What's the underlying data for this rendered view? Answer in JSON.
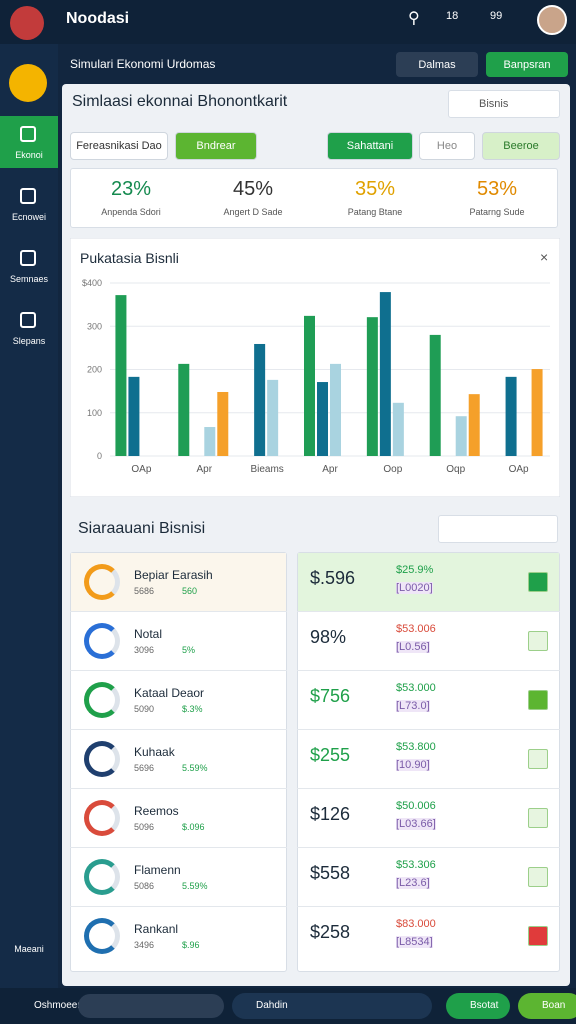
{
  "header": {
    "brand": "Noodasi",
    "badges": [
      "18",
      "99"
    ]
  },
  "toolbar": {
    "breadcrumb": "Simulari Ekonomi Urdomas",
    "buttons": [
      "Dalmas",
      "Banpsran"
    ]
  },
  "sidebar": {
    "items": [
      "Ekonoi",
      "Ecnowei",
      "Semnaes",
      "Slepans"
    ],
    "bottom": "Maeani"
  },
  "panel": {
    "title": "Simlaasi ekonnai Bhonontkarit",
    "dropdown": "Bisnis",
    "filters": [
      "Fereasnikasi Dao",
      "Bndrear",
      "Sahattani",
      "Heo",
      "Beeroe"
    ],
    "stats": [
      {
        "value": "23%",
        "label": "Anpenda Sdori"
      },
      {
        "value": "45%",
        "label": "Angert D Sade"
      },
      {
        "value": "35%",
        "label": "Patang Btane"
      },
      {
        "value": "53%",
        "label": "Patarng Sude"
      }
    ]
  },
  "chart_data": {
    "type": "bar",
    "title": "Pukatasia Bisnli",
    "categories": [
      "OAp",
      "Apr",
      "Bieams",
      "Apr",
      "Oop",
      "Oqp",
      "OAp"
    ],
    "series": [
      {
        "color": "#1f9d55",
        "values": [
          372,
          213,
          null,
          324,
          321,
          280,
          null
        ]
      },
      {
        "color": "#0f6f8f",
        "values": [
          183,
          null,
          259,
          171,
          379,
          null,
          183
        ]
      },
      {
        "color": "#a9d3e0",
        "values": [
          null,
          67,
          176,
          213,
          123,
          92,
          null
        ]
      },
      {
        "color": "#f5a02a",
        "values": [
          null,
          148,
          null,
          null,
          null,
          143,
          201
        ]
      }
    ],
    "ylim": [
      0,
      400
    ],
    "yticks": [
      {
        "value": 400,
        "label": "$400"
      },
      300,
      200,
      100,
      0
    ],
    "grid": true
  },
  "list": {
    "title": "Siaraauani Bisnisi",
    "rows": [
      {
        "name": "Bepiar Earasih",
        "a": "5686",
        "b": "560",
        "value": "$.596",
        "top": "$25.9%",
        "bottom": "[L0020]"
      },
      {
        "name": "Notal",
        "a": "3096",
        "b": "5%",
        "value": "98%",
        "top": "$53.006",
        "bottom": "[L0.56]"
      },
      {
        "name": "Kataal Deaor",
        "a": "5090",
        "b": "$.3%",
        "value": "$756",
        "top": "$53.000",
        "bottom": "[L73.0]"
      },
      {
        "name": "Kuhaak",
        "a": "5696",
        "b": "5.59%",
        "value": "$255",
        "top": "$53.800",
        "bottom": "[10.90]"
      },
      {
        "name": "Reemos",
        "a": "5096",
        "b": "$.096",
        "value": "$126",
        "top": "$50.006",
        "bottom": "[L03.66]"
      },
      {
        "name": "Flamenn",
        "a": "5086",
        "b": "5.59%",
        "value": "$558",
        "top": "$53.306",
        "bottom": "[L23.6]"
      },
      {
        "name": "Rankanl",
        "a": "3496",
        "b": "$.96",
        "value": "$258",
        "top": "$83.000",
        "bottom": "[L8534]"
      }
    ]
  },
  "footer": {
    "items": [
      "Oshmoeen",
      "Dahdin",
      "Bsotat",
      "Boan"
    ]
  }
}
